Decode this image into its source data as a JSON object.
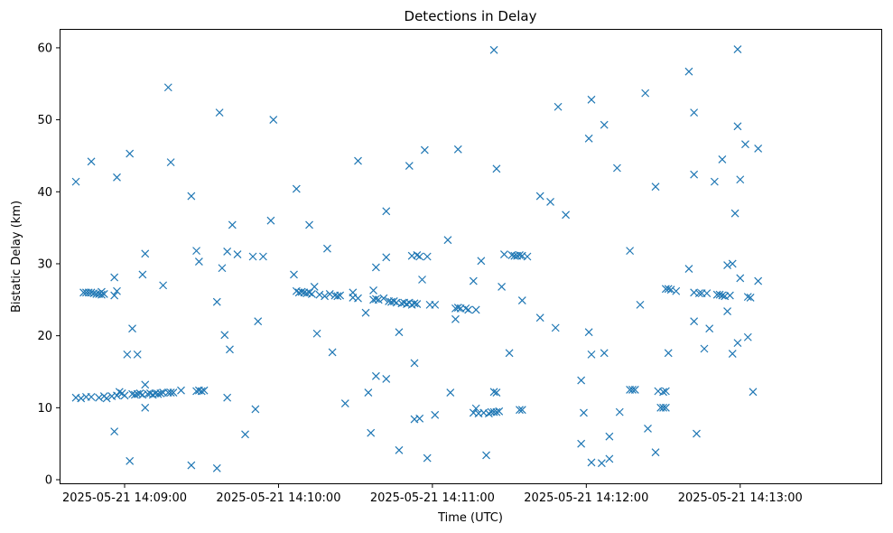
{
  "chart_data": {
    "type": "scatter",
    "title": "Detections in Delay",
    "xlabel": "Time (UTC)",
    "ylabel": "Bistatic Delay (km)",
    "x_ticks": [
      "2025-05-21 14:09:00",
      "2025-05-21 14:10:00",
      "2025-05-21 14:11:00",
      "2025-05-21 14:12:00",
      "2025-05-21 14:13:00"
    ],
    "y_ticks": [
      "0",
      "10",
      "20",
      "30",
      "40",
      "50",
      "60"
    ],
    "xlim": [
      "2025-05-21 14:08:35",
      "2025-05-21 14:13:55"
    ],
    "ylim": [
      -0.5,
      62.5
    ],
    "grid": false,
    "marker": "x",
    "marker_color": "#1f77b4",
    "points": [
      [
        "2025-05-21 14:08:41",
        41.4
      ],
      [
        "2025-05-21 14:08:41",
        11.4
      ],
      [
        "2025-05-21 14:08:43",
        11.3
      ],
      [
        "2025-05-21 14:08:44",
        26.0
      ],
      [
        "2025-05-21 14:08:45",
        11.5
      ],
      [
        "2025-05-21 14:08:45",
        26.0
      ],
      [
        "2025-05-21 14:08:46",
        26.0
      ],
      [
        "2025-05-21 14:08:47",
        44.2
      ],
      [
        "2025-05-21 14:08:47",
        11.5
      ],
      [
        "2025-05-21 14:08:47",
        26.0
      ],
      [
        "2025-05-21 14:08:48",
        25.9
      ],
      [
        "2025-05-21 14:08:49",
        25.8
      ],
      [
        "2025-05-21 14:08:50",
        11.4
      ],
      [
        "2025-05-21 14:08:50",
        25.8
      ],
      [
        "2025-05-21 14:08:51",
        26.1
      ],
      [
        "2025-05-21 14:08:51",
        25.7
      ],
      [
        "2025-05-21 14:08:52",
        11.6
      ],
      [
        "2025-05-21 14:08:52",
        25.8
      ],
      [
        "2025-05-21 14:08:53",
        11.3
      ],
      [
        "2025-05-21 14:08:55",
        11.6
      ],
      [
        "2025-05-21 14:08:56",
        6.7
      ],
      [
        "2025-05-21 14:08:56",
        28.1
      ],
      [
        "2025-05-21 14:08:56",
        25.6
      ],
      [
        "2025-05-21 14:08:57",
        11.7
      ],
      [
        "2025-05-21 14:08:57",
        26.2
      ],
      [
        "2025-05-21 14:08:57",
        42.0
      ],
      [
        "2025-05-21 14:08:58",
        12.2
      ],
      [
        "2025-05-21 14:08:59",
        12.0
      ],
      [
        "2025-05-21 14:09:00",
        11.7
      ],
      [
        "2025-05-21 14:09:01",
        17.4
      ],
      [
        "2025-05-21 14:09:02",
        45.3
      ],
      [
        "2025-05-21 14:09:02",
        2.6
      ],
      [
        "2025-05-21 14:09:03",
        21.0
      ],
      [
        "2025-05-21 14:09:03",
        11.9
      ],
      [
        "2025-05-21 14:09:04",
        11.8
      ],
      [
        "2025-05-21 14:09:05",
        17.4
      ],
      [
        "2025-05-21 14:09:05",
        11.9
      ],
      [
        "2025-05-21 14:09:06",
        12.0
      ],
      [
        "2025-05-21 14:09:07",
        28.5
      ],
      [
        "2025-05-21 14:09:07",
        11.8
      ],
      [
        "2025-05-21 14:09:08",
        31.4
      ],
      [
        "2025-05-21 14:09:08",
        13.2
      ],
      [
        "2025-05-21 14:09:08",
        10.0
      ],
      [
        "2025-05-21 14:09:09",
        11.9
      ],
      [
        "2025-05-21 14:09:10",
        12.0
      ],
      [
        "2025-05-21 14:09:11",
        11.8
      ],
      [
        "2025-05-21 14:09:12",
        12.0
      ],
      [
        "2025-05-21 14:09:13",
        11.9
      ],
      [
        "2025-05-21 14:09:14",
        12.0
      ],
      [
        "2025-05-21 14:09:15",
        27.0
      ],
      [
        "2025-05-21 14:09:15",
        12.1
      ],
      [
        "2025-05-21 14:09:17",
        54.5
      ],
      [
        "2025-05-21 14:09:17",
        12.1
      ],
      [
        "2025-05-21 14:09:18",
        44.1
      ],
      [
        "2025-05-21 14:09:18",
        12.1
      ],
      [
        "2025-05-21 14:09:19",
        12.1
      ],
      [
        "2025-05-21 14:09:22",
        12.4
      ],
      [
        "2025-05-21 14:09:26",
        39.4
      ],
      [
        "2025-05-21 14:09:26",
        2.0
      ],
      [
        "2025-05-21 14:09:28",
        31.8
      ],
      [
        "2025-05-21 14:09:28",
        12.3
      ],
      [
        "2025-05-21 14:09:29",
        30.3
      ],
      [
        "2025-05-21 14:09:29",
        12.4
      ],
      [
        "2025-05-21 14:09:30",
        12.3
      ],
      [
        "2025-05-21 14:09:31",
        12.4
      ],
      [
        "2025-05-21 14:09:36",
        24.7
      ],
      [
        "2025-05-21 14:09:36",
        1.6
      ],
      [
        "2025-05-21 14:09:37",
        51.0
      ],
      [
        "2025-05-21 14:09:38",
        29.4
      ],
      [
        "2025-05-21 14:09:39",
        20.1
      ],
      [
        "2025-05-21 14:09:40",
        31.7
      ],
      [
        "2025-05-21 14:09:40",
        11.4
      ],
      [
        "2025-05-21 14:09:41",
        18.1
      ],
      [
        "2025-05-21 14:09:42",
        35.4
      ],
      [
        "2025-05-21 14:09:44",
        31.3
      ],
      [
        "2025-05-21 14:09:47",
        6.3
      ],
      [
        "2025-05-21 14:09:50",
        31.0
      ],
      [
        "2025-05-21 14:09:51",
        9.8
      ],
      [
        "2025-05-21 14:09:52",
        22.0
      ],
      [
        "2025-05-21 14:09:54",
        31.0
      ],
      [
        "2025-05-21 14:09:57",
        36.0
      ],
      [
        "2025-05-21 14:09:58",
        50.0
      ],
      [
        "2025-05-21 14:10:06",
        28.5
      ],
      [
        "2025-05-21 14:10:07",
        26.2
      ],
      [
        "2025-05-21 14:10:07",
        40.4
      ],
      [
        "2025-05-21 14:10:08",
        26.0
      ],
      [
        "2025-05-21 14:10:09",
        26.1
      ],
      [
        "2025-05-21 14:10:10",
        26.0
      ],
      [
        "2025-05-21 14:10:11",
        25.9
      ],
      [
        "2025-05-21 14:10:12",
        35.4
      ],
      [
        "2025-05-21 14:10:12",
        26.0
      ],
      [
        "2025-05-21 14:10:13",
        25.8
      ],
      [
        "2025-05-21 14:10:14",
        26.8
      ],
      [
        "2025-05-21 14:10:15",
        20.3
      ],
      [
        "2025-05-21 14:10:16",
        25.7
      ],
      [
        "2025-05-21 14:10:18",
        25.5
      ],
      [
        "2025-05-21 14:10:19",
        32.1
      ],
      [
        "2025-05-21 14:10:20",
        25.8
      ],
      [
        "2025-05-21 14:10:21",
        17.7
      ],
      [
        "2025-05-21 14:10:22",
        25.6
      ],
      [
        "2025-05-21 14:10:23",
        25.5
      ],
      [
        "2025-05-21 14:10:24",
        25.6
      ],
      [
        "2025-05-21 14:10:26",
        10.6
      ],
      [
        "2025-05-21 14:10:29",
        26.0
      ],
      [
        "2025-05-21 14:10:29",
        25.3
      ],
      [
        "2025-05-21 14:10:31",
        25.2
      ],
      [
        "2025-05-21 14:10:31",
        44.3
      ],
      [
        "2025-05-21 14:10:34",
        23.2
      ],
      [
        "2025-05-21 14:10:35",
        12.1
      ],
      [
        "2025-05-21 14:10:36",
        6.5
      ],
      [
        "2025-05-21 14:10:37",
        26.3
      ],
      [
        "2025-05-21 14:10:37",
        25.0
      ],
      [
        "2025-05-21 14:10:38",
        14.4
      ],
      [
        "2025-05-21 14:10:38",
        29.5
      ],
      [
        "2025-05-21 14:10:38",
        25.1
      ],
      [
        "2025-05-21 14:10:39",
        25.0
      ],
      [
        "2025-05-21 14:10:41",
        25.2
      ],
      [
        "2025-05-21 14:10:42",
        37.3
      ],
      [
        "2025-05-21 14:10:42",
        14.0
      ],
      [
        "2025-05-21 14:10:42",
        30.9
      ],
      [
        "2025-05-21 14:10:43",
        24.8
      ],
      [
        "2025-05-21 14:10:44",
        24.7
      ],
      [
        "2025-05-21 14:10:45",
        24.8
      ],
      [
        "2025-05-21 14:10:46",
        24.6
      ],
      [
        "2025-05-21 14:10:47",
        4.1
      ],
      [
        "2025-05-21 14:10:47",
        20.5
      ],
      [
        "2025-05-21 14:10:48",
        24.5
      ],
      [
        "2025-05-21 14:10:49",
        24.6
      ],
      [
        "2025-05-21 14:10:50",
        24.4
      ],
      [
        "2025-05-21 14:10:51",
        43.6
      ],
      [
        "2025-05-21 14:10:51",
        24.6
      ],
      [
        "2025-05-21 14:10:52",
        31.1
      ],
      [
        "2025-05-21 14:10:52",
        24.3
      ],
      [
        "2025-05-21 14:10:53",
        16.2
      ],
      [
        "2025-05-21 14:10:53",
        8.4
      ],
      [
        "2025-05-21 14:10:53",
        24.5
      ],
      [
        "2025-05-21 14:10:54",
        31.2
      ],
      [
        "2025-05-21 14:10:54",
        24.4
      ],
      [
        "2025-05-21 14:10:55",
        8.5
      ],
      [
        "2025-05-21 14:10:55",
        31.0
      ],
      [
        "2025-05-21 14:10:56",
        27.8
      ],
      [
        "2025-05-21 14:10:57",
        45.8
      ],
      [
        "2025-05-21 14:10:58",
        3.0
      ],
      [
        "2025-05-21 14:10:58",
        31.0
      ],
      [
        "2025-05-21 14:10:59",
        24.3
      ],
      [
        "2025-05-21 14:11:01",
        9.0
      ],
      [
        "2025-05-21 14:11:01",
        24.3
      ],
      [
        "2025-05-21 14:11:06",
        33.3
      ],
      [
        "2025-05-21 14:11:07",
        12.1
      ],
      [
        "2025-05-21 14:11:09",
        22.3
      ],
      [
        "2025-05-21 14:11:09",
        23.8
      ],
      [
        "2025-05-21 14:11:10",
        45.9
      ],
      [
        "2025-05-21 14:11:10",
        23.9
      ],
      [
        "2025-05-21 14:11:11",
        23.8
      ],
      [
        "2025-05-21 14:11:13",
        23.8
      ],
      [
        "2025-05-21 14:11:14",
        23.6
      ],
      [
        "2025-05-21 14:11:16",
        27.6
      ],
      [
        "2025-05-21 14:11:16",
        9.3
      ],
      [
        "2025-05-21 14:11:17",
        23.6
      ],
      [
        "2025-05-21 14:11:17",
        9.9
      ],
      [
        "2025-05-21 14:11:18",
        9.2
      ],
      [
        "2025-05-21 14:11:19",
        30.4
      ],
      [
        "2025-05-21 14:11:20",
        9.3
      ],
      [
        "2025-05-21 14:11:21",
        3.4
      ],
      [
        "2025-05-21 14:11:22",
        9.2
      ],
      [
        "2025-05-21 14:11:23",
        9.4
      ],
      [
        "2025-05-21 14:11:24",
        59.7
      ],
      [
        "2025-05-21 14:11:24",
        12.2
      ],
      [
        "2025-05-21 14:11:24",
        9.4
      ],
      [
        "2025-05-21 14:11:25",
        43.2
      ],
      [
        "2025-05-21 14:11:25",
        12.1
      ],
      [
        "2025-05-21 14:11:25",
        9.4
      ],
      [
        "2025-05-21 14:11:26",
        9.5
      ],
      [
        "2025-05-21 14:11:27",
        26.8
      ],
      [
        "2025-05-21 14:11:28",
        31.3
      ],
      [
        "2025-05-21 14:11:30",
        17.6
      ],
      [
        "2025-05-21 14:11:31",
        31.2
      ],
      [
        "2025-05-21 14:11:32",
        31.1
      ],
      [
        "2025-05-21 14:11:33",
        31.1
      ],
      [
        "2025-05-21 14:11:34",
        31.2
      ],
      [
        "2025-05-21 14:11:35",
        24.9
      ],
      [
        "2025-05-21 14:11:35",
        31.1
      ],
      [
        "2025-05-21 14:11:34",
        9.7
      ],
      [
        "2025-05-21 14:11:35",
        9.7
      ],
      [
        "2025-05-21 14:11:37",
        31.0
      ],
      [
        "2025-05-21 14:11:42",
        39.4
      ],
      [
        "2025-05-21 14:11:42",
        22.5
      ],
      [
        "2025-05-21 14:11:46",
        38.6
      ],
      [
        "2025-05-21 14:11:48",
        21.1
      ],
      [
        "2025-05-21 14:11:49",
        51.8
      ],
      [
        "2025-05-21 14:11:52",
        36.8
      ],
      [
        "2025-05-21 14:11:58",
        13.8
      ],
      [
        "2025-05-21 14:11:58",
        5.0
      ],
      [
        "2025-05-21 14:11:59",
        9.3
      ],
      [
        "2025-05-21 14:12:01",
        47.4
      ],
      [
        "2025-05-21 14:12:01",
        20.5
      ],
      [
        "2025-05-21 14:12:02",
        52.8
      ],
      [
        "2025-05-21 14:12:02",
        17.4
      ],
      [
        "2025-05-21 14:12:02",
        2.4
      ],
      [
        "2025-05-21 14:12:06",
        2.3
      ],
      [
        "2025-05-21 14:12:07",
        49.3
      ],
      [
        "2025-05-21 14:12:07",
        17.6
      ],
      [
        "2025-05-21 14:12:09",
        6.0
      ],
      [
        "2025-05-21 14:12:09",
        2.9
      ],
      [
        "2025-05-21 14:12:12",
        43.3
      ],
      [
        "2025-05-21 14:12:13",
        9.4
      ],
      [
        "2025-05-21 14:12:17",
        31.8
      ],
      [
        "2025-05-21 14:12:17",
        12.5
      ],
      [
        "2025-05-21 14:12:18",
        12.5
      ],
      [
        "2025-05-21 14:12:19",
        12.5
      ],
      [
        "2025-05-21 14:12:21",
        24.3
      ],
      [
        "2025-05-21 14:12:23",
        53.7
      ],
      [
        "2025-05-21 14:12:24",
        7.1
      ],
      [
        "2025-05-21 14:12:27",
        40.7
      ],
      [
        "2025-05-21 14:12:27",
        3.8
      ],
      [
        "2025-05-21 14:12:28",
        12.3
      ],
      [
        "2025-05-21 14:12:29",
        10.0
      ],
      [
        "2025-05-21 14:12:30",
        12.2
      ],
      [
        "2025-05-21 14:12:30",
        10.0
      ],
      [
        "2025-05-21 14:12:31",
        12.3
      ],
      [
        "2025-05-21 14:12:31",
        10.0
      ],
      [
        "2025-05-21 14:12:31",
        26.5
      ],
      [
        "2025-05-21 14:12:32",
        17.6
      ],
      [
        "2025-05-21 14:12:32",
        26.5
      ],
      [
        "2025-05-21 14:12:33",
        26.4
      ],
      [
        "2025-05-21 14:12:35",
        26.2
      ],
      [
        "2025-05-21 14:12:40",
        56.7
      ],
      [
        "2025-05-21 14:12:40",
        29.3
      ],
      [
        "2025-05-21 14:12:42",
        51.0
      ],
      [
        "2025-05-21 14:12:42",
        42.4
      ],
      [
        "2025-05-21 14:12:42",
        26.0
      ],
      [
        "2025-05-21 14:12:42",
        22.0
      ],
      [
        "2025-05-21 14:12:43",
        6.4
      ],
      [
        "2025-05-21 14:12:44",
        25.9
      ],
      [
        "2025-05-21 14:12:45",
        25.9
      ],
      [
        "2025-05-21 14:12:46",
        18.2
      ],
      [
        "2025-05-21 14:12:47",
        25.9
      ],
      [
        "2025-05-21 14:12:48",
        21.0
      ],
      [
        "2025-05-21 14:12:50",
        41.4
      ],
      [
        "2025-05-21 14:12:51",
        25.7
      ],
      [
        "2025-05-21 14:12:52",
        25.7
      ],
      [
        "2025-05-21 14:12:53",
        44.5
      ],
      [
        "2025-05-21 14:12:53",
        25.6
      ],
      [
        "2025-05-21 14:12:54",
        25.5
      ],
      [
        "2025-05-21 14:12:55",
        23.4
      ],
      [
        "2025-05-21 14:12:55",
        29.8
      ],
      [
        "2025-05-21 14:12:56",
        25.6
      ],
      [
        "2025-05-21 14:12:57",
        30.0
      ],
      [
        "2025-05-21 14:12:57",
        17.5
      ],
      [
        "2025-05-21 14:12:58",
        37.0
      ],
      [
        "2025-05-21 14:12:59",
        59.8
      ],
      [
        "2025-05-21 14:12:59",
        49.1
      ],
      [
        "2025-05-21 14:12:59",
        19.0
      ],
      [
        "2025-05-21 14:13:00",
        41.7
      ],
      [
        "2025-05-21 14:13:00",
        28.0
      ],
      [
        "2025-05-21 14:13:02",
        46.6
      ],
      [
        "2025-05-21 14:13:03",
        25.4
      ],
      [
        "2025-05-21 14:13:03",
        19.8
      ],
      [
        "2025-05-21 14:13:04",
        25.3
      ],
      [
        "2025-05-21 14:13:05",
        12.2
      ],
      [
        "2025-05-21 14:13:07",
        46.0
      ],
      [
        "2025-05-21 14:13:07",
        27.6
      ]
    ]
  }
}
